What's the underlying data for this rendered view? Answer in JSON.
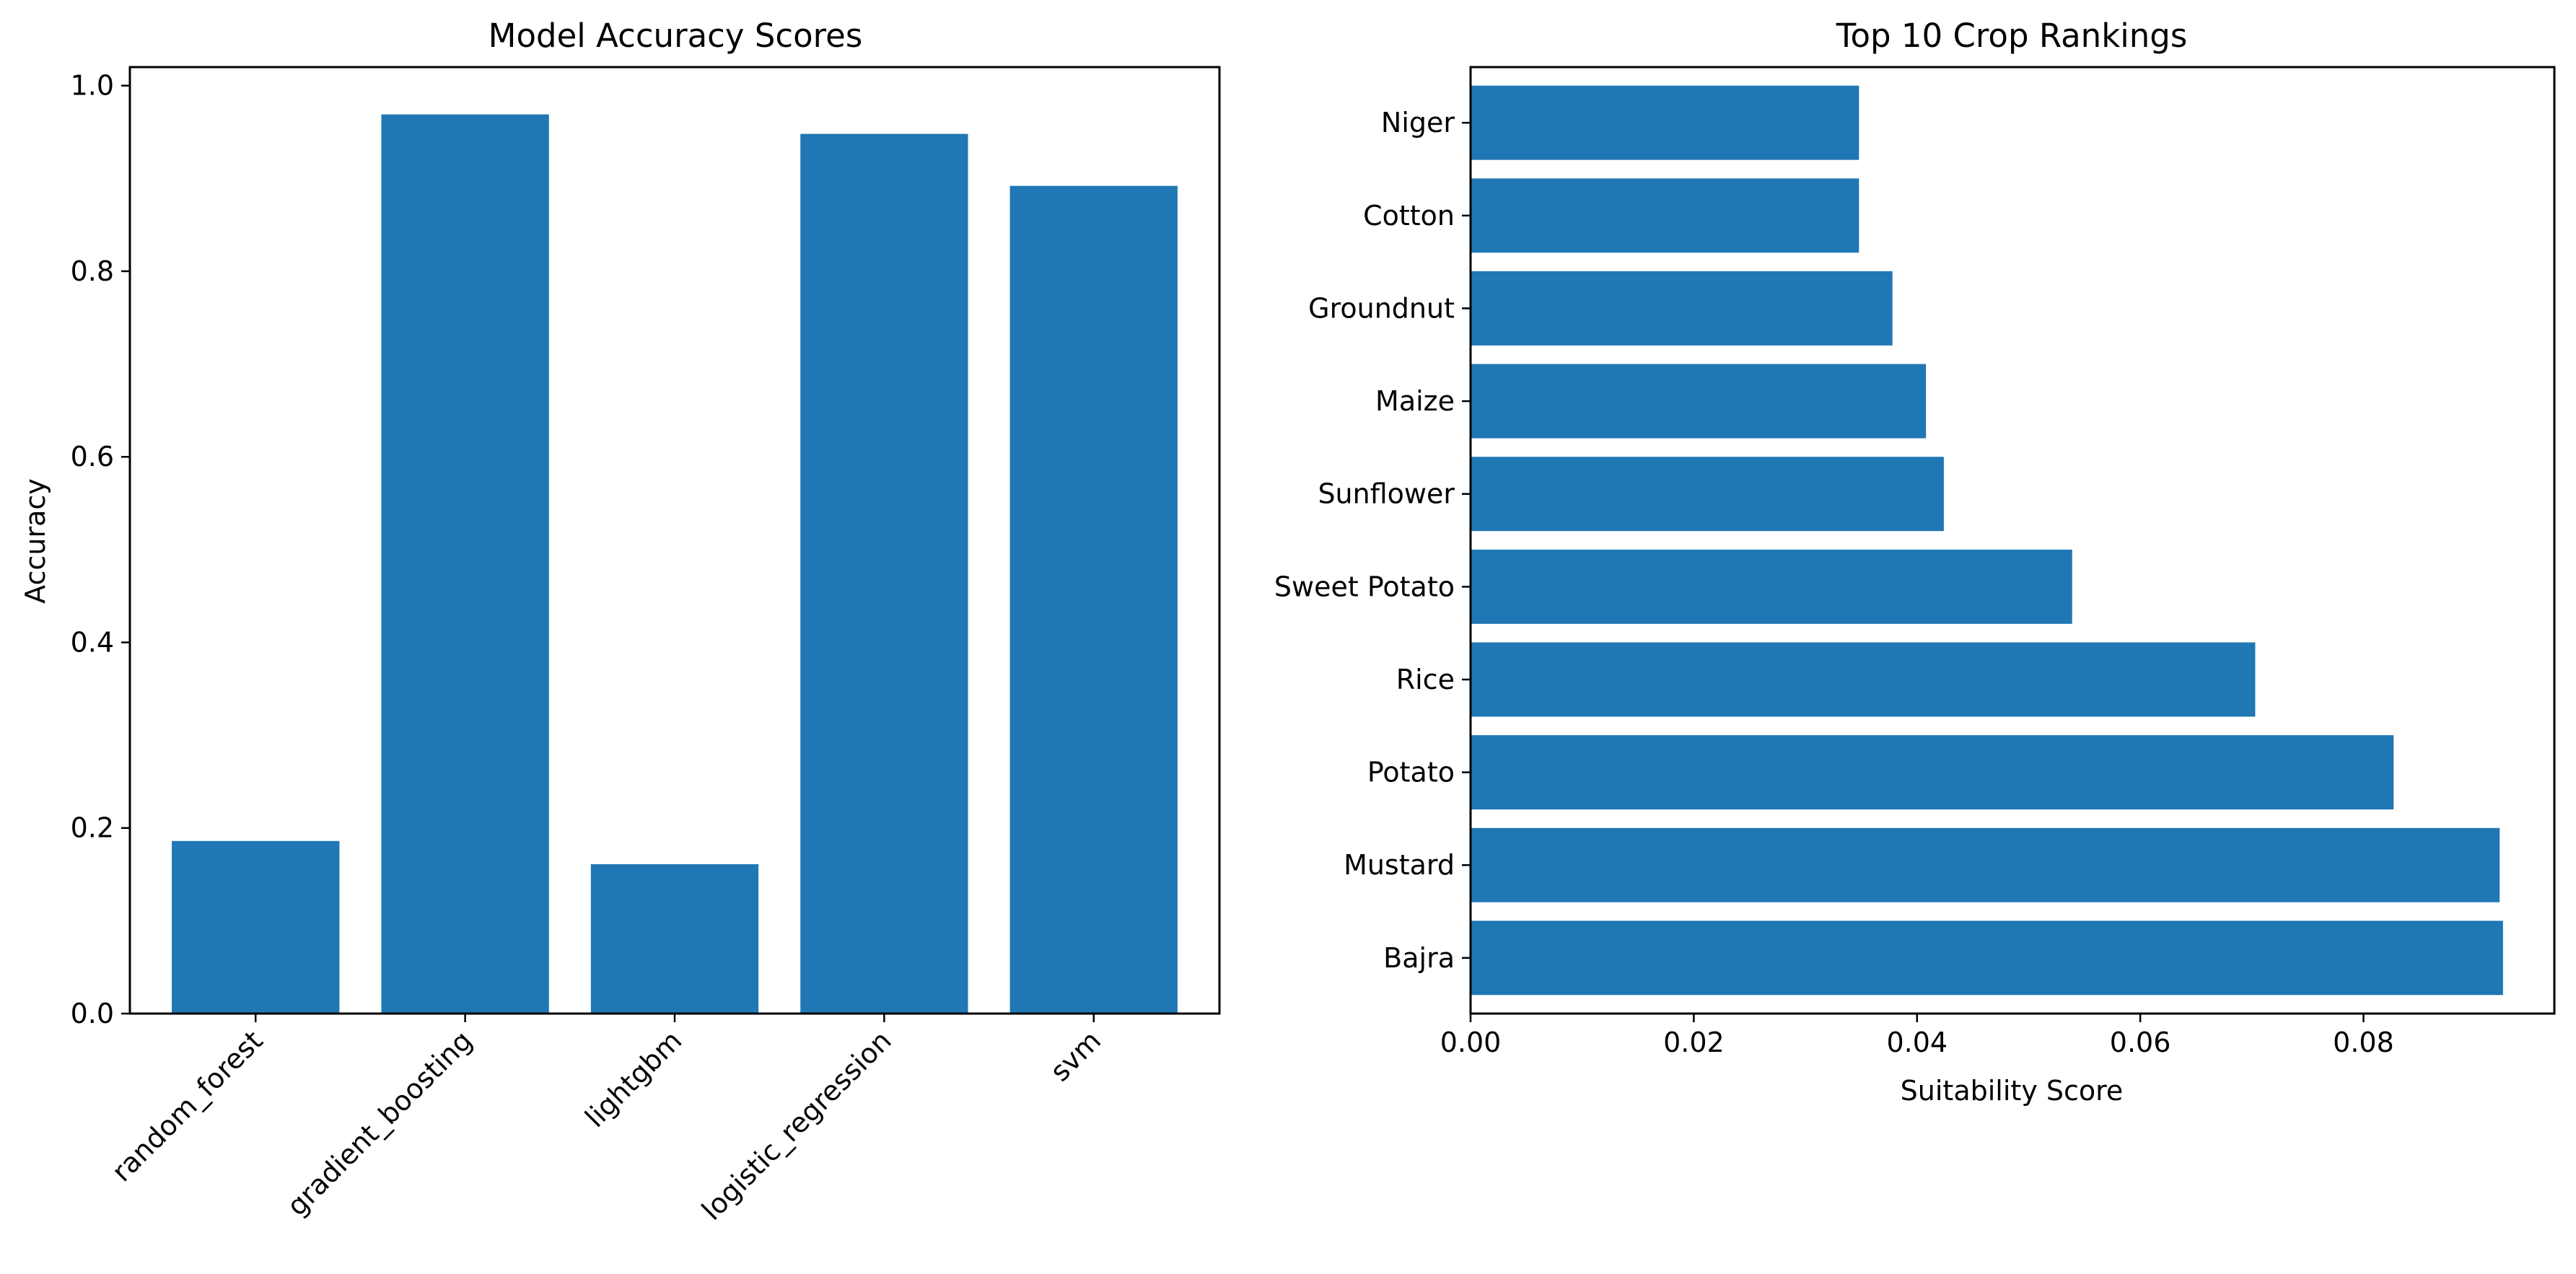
{
  "chart_data": [
    {
      "type": "bar",
      "title": "Model Accuracy Scores",
      "xlabel": "",
      "ylabel": "Accuracy",
      "categories": [
        "random_forest",
        "gradient_boosting",
        "lightgbm",
        "logistic_regression",
        "svm"
      ],
      "values": [
        0.186,
        0.969,
        0.161,
        0.948,
        0.892
      ],
      "ylim": [
        0,
        1.02
      ],
      "yticks": [
        0.0,
        0.2,
        0.4,
        0.6,
        0.8,
        1.0
      ],
      "ytick_labels": [
        "0.0",
        "0.2",
        "0.4",
        "0.6",
        "0.8",
        "1.0"
      ],
      "color": "#1f77b4",
      "grid": false
    },
    {
      "type": "bar",
      "orientation": "horizontal",
      "title": "Top 10 Crop Rankings",
      "xlabel": "Suitability Score",
      "ylabel": "",
      "categories": [
        "Bajra",
        "Mustard",
        "Potato",
        "Rice",
        "Sweet Potato",
        "Sunflower",
        "Maize",
        "Groundnut",
        "Cotton",
        "Niger"
      ],
      "values": [
        0.0925,
        0.0922,
        0.0827,
        0.0703,
        0.0539,
        0.0424,
        0.0408,
        0.0378,
        0.0348,
        0.0348
      ],
      "xlim": [
        0,
        0.0971
      ],
      "xticks": [
        0.0,
        0.02,
        0.04,
        0.06,
        0.08
      ],
      "xtick_labels": [
        "0.00",
        "0.02",
        "0.04",
        "0.06",
        "0.08"
      ],
      "color": "#1f77b4",
      "grid": false
    }
  ]
}
